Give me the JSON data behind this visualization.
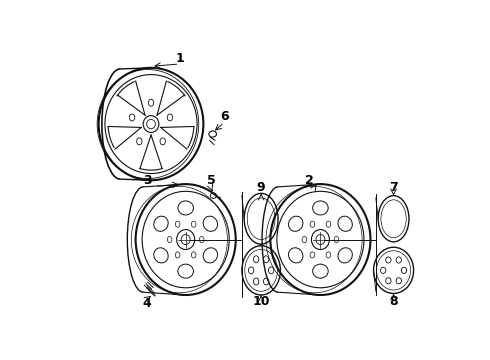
{
  "background_color": "#ffffff",
  "line_color": "#111111",
  "text_color": "#000000",
  "fig_w": 4.9,
  "fig_h": 3.6,
  "dpi": 100
}
